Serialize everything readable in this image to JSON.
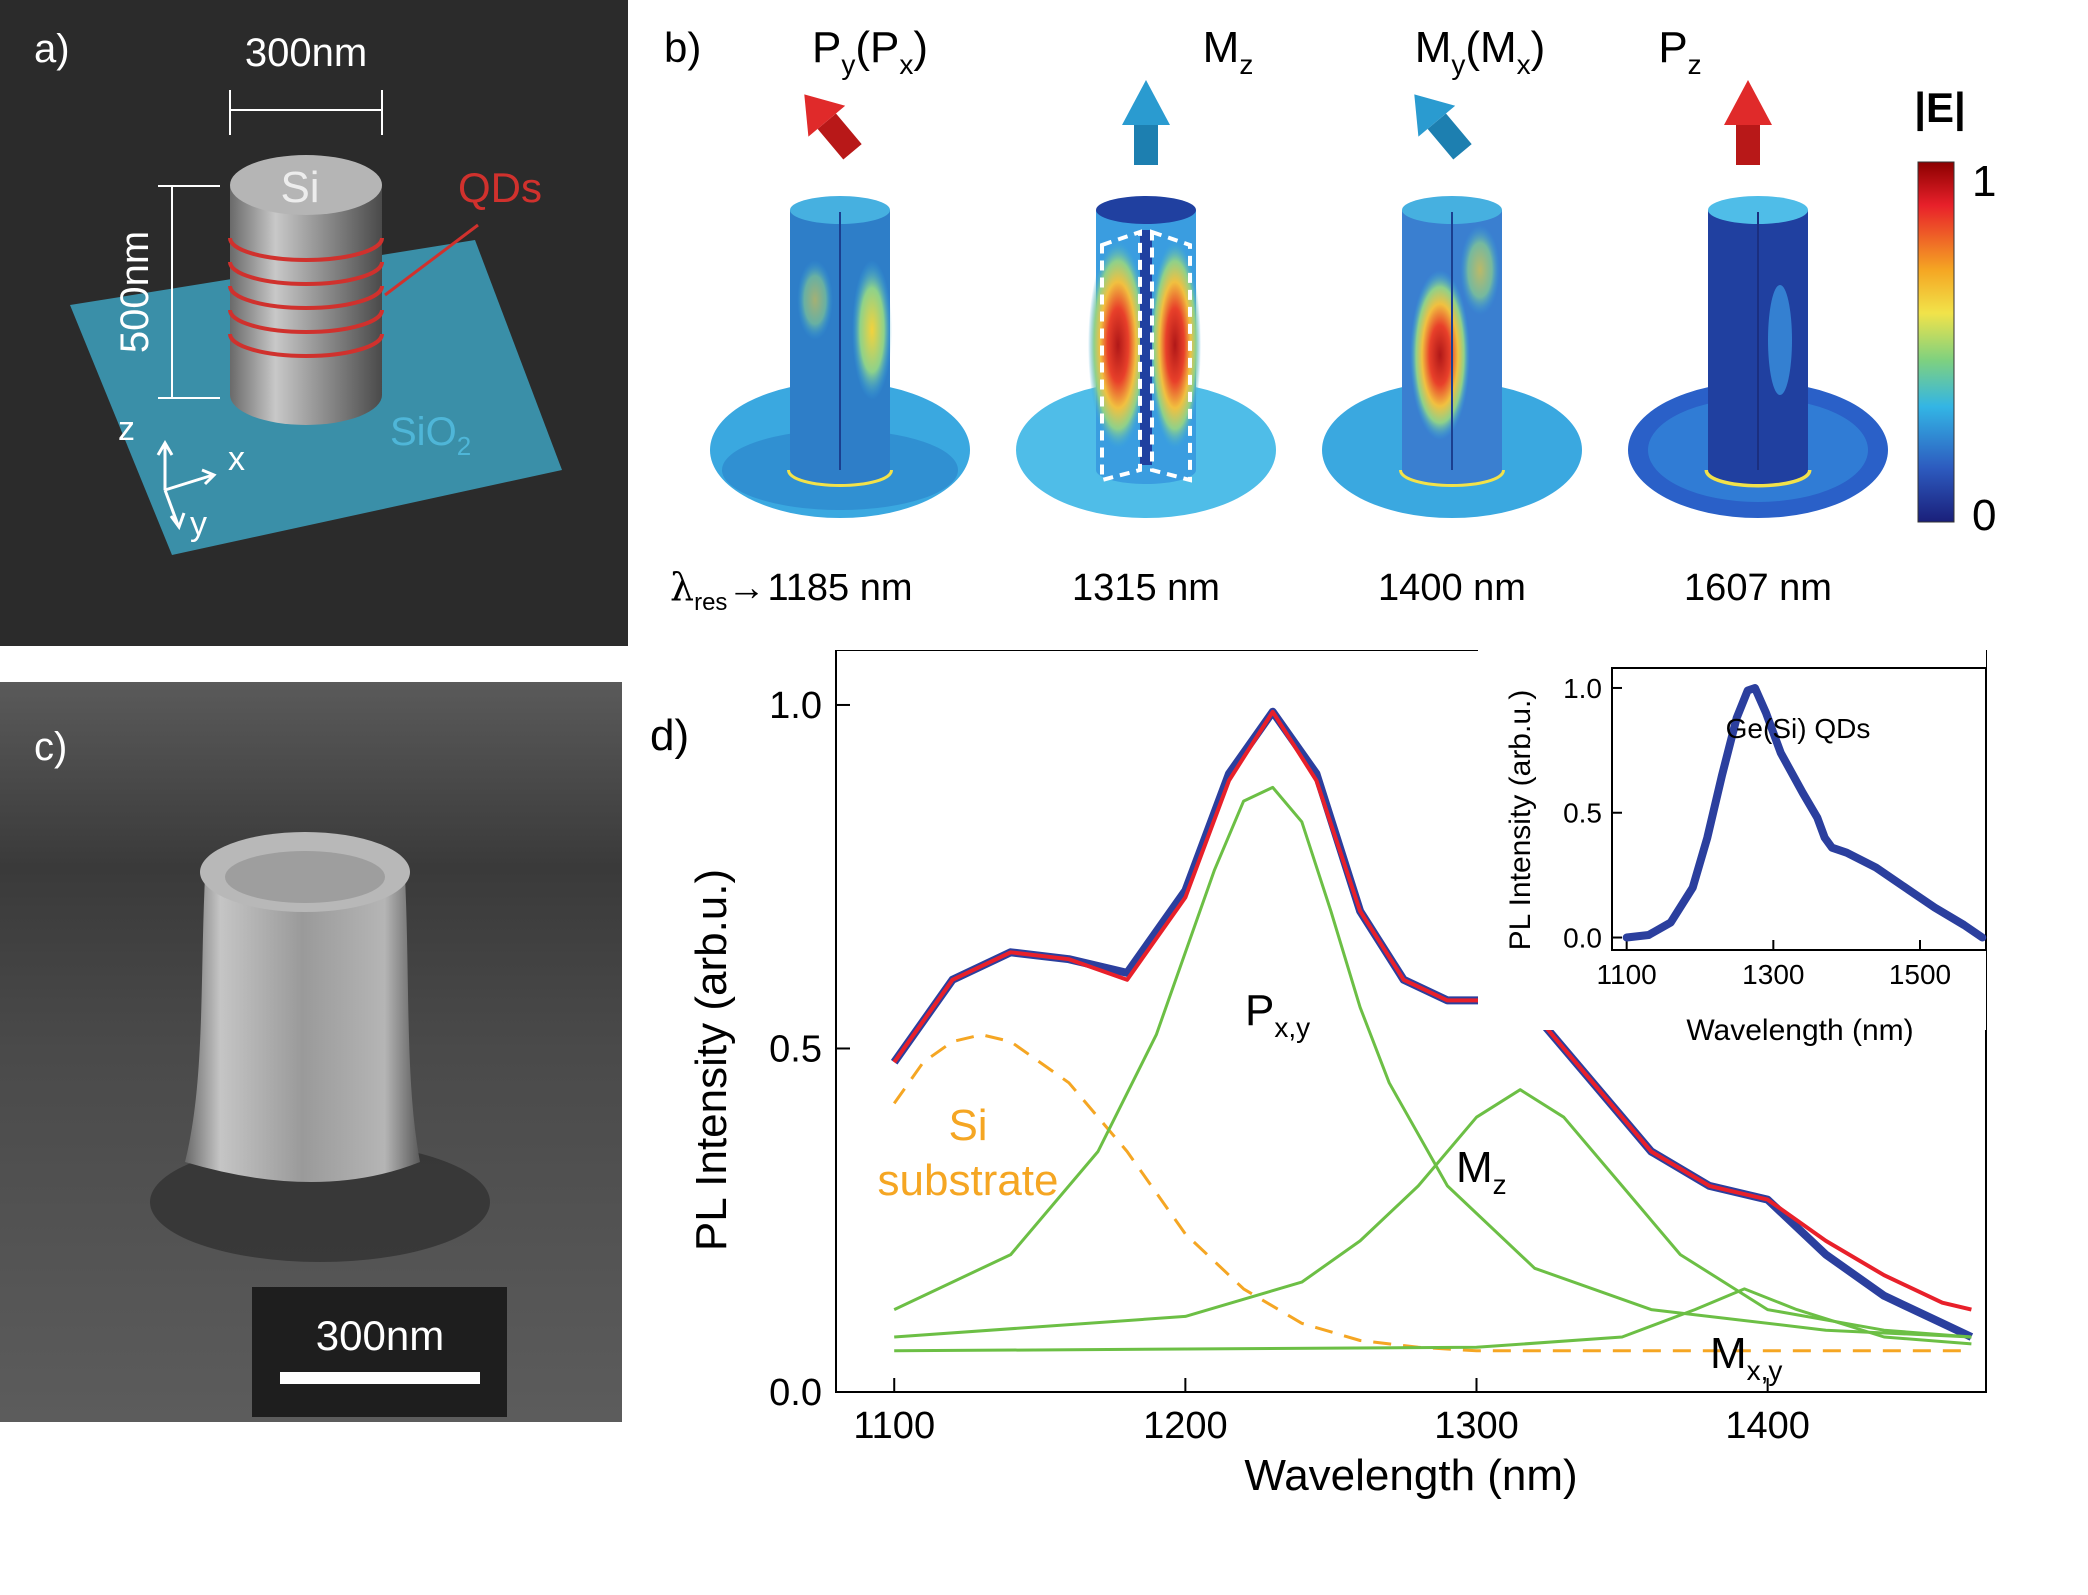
{
  "panel_a": {
    "label": "a)",
    "width_label": "300nm",
    "height_label": "500nm",
    "pillar_label": "Si",
    "qd_label": "QDs",
    "substrate_label": "SiO",
    "substrate_sub": "2",
    "axes": {
      "z": "z",
      "x": "x",
      "y": "y"
    },
    "colors": {
      "background": "#2b2b2b",
      "substrate": "#3a8fa8",
      "qd": "#d0312d",
      "sio2_text": "#4fb6d8"
    }
  },
  "panel_b": {
    "label": "b)",
    "modes": [
      {
        "main": "P",
        "sub": "y",
        "paren_main": "P",
        "paren_sub": "x",
        "arrow": "tilted-left",
        "color": "#d42020",
        "wavelength": "1185 nm"
      },
      {
        "main": "M",
        "sub": "z",
        "paren_main": "",
        "paren_sub": "",
        "arrow": "up",
        "color": "#2a9bd0",
        "wavelength": "1315 nm"
      },
      {
        "main": "M",
        "sub": "y",
        "paren_main": "M",
        "paren_sub": "x",
        "arrow": "tilted-left",
        "color": "#2a9bd0",
        "wavelength": "1400 nm"
      },
      {
        "main": "P",
        "sub": "z",
        "paren_main": "",
        "paren_sub": "",
        "arrow": "up",
        "color": "#d42020",
        "wavelength": "1607 nm"
      }
    ],
    "lambda_symbol": "λ",
    "lambda_sub": "res",
    "lambda_arrow": "→",
    "colorbar": {
      "title": "|E|",
      "max": "1",
      "min": "0"
    }
  },
  "panel_c": {
    "label": "c)",
    "scale_label": "300nm"
  },
  "panel_d": {
    "label": "d)",
    "annotations": {
      "si_line1": "Si",
      "si_line2": "substrate",
      "p_main": "P",
      "p_sub": "x,y",
      "mz_main": "M",
      "mz_sub": "z",
      "mxy_main": "M",
      "mxy_sub": "x,y"
    },
    "colors": {
      "data": "#2b3f9e",
      "fit": "#e8202a",
      "component": "#6cbf45",
      "si": "#f5a623"
    }
  },
  "chart_data": [
    {
      "type": "line",
      "xlabel": "Wavelength (nm)",
      "ylabel": "PL Intensity (arb.u.)",
      "xlim": [
        1080,
        1475
      ],
      "ylim": [
        0.0,
        1.08
      ],
      "xticks": [
        1100,
        1200,
        1300,
        1400
      ],
      "yticks": [
        0.0,
        0.5,
        1.0
      ],
      "xtick_labels": [
        "1100",
        "1200",
        "1300",
        "1400"
      ],
      "ytick_labels": [
        "0.0",
        "0.5",
        "1.0"
      ],
      "series": [
        {
          "name": "",
          "role": "measured",
          "x": [
            1100,
            1120,
            1140,
            1160,
            1180,
            1200,
            1215,
            1230,
            1245,
            1260,
            1275,
            1290,
            1300,
            1310,
            1320,
            1340,
            1360,
            1380,
            1400,
            1420,
            1440,
            1460,
            1470
          ],
          "values": [
            0.48,
            0.6,
            0.64,
            0.63,
            0.61,
            0.73,
            0.9,
            0.99,
            0.9,
            0.7,
            0.6,
            0.57,
            0.57,
            0.57,
            0.55,
            0.45,
            0.35,
            0.3,
            0.28,
            0.2,
            0.14,
            0.1,
            0.08
          ]
        },
        {
          "name": "",
          "role": "fit",
          "x": [
            1100,
            1120,
            1140,
            1160,
            1180,
            1200,
            1215,
            1230,
            1245,
            1260,
            1275,
            1290,
            1300,
            1310,
            1320,
            1340,
            1360,
            1380,
            1400,
            1420,
            1440,
            1460,
            1470
          ],
          "values": [
            0.48,
            0.6,
            0.64,
            0.63,
            0.6,
            0.72,
            0.89,
            0.99,
            0.89,
            0.7,
            0.6,
            0.57,
            0.57,
            0.57,
            0.55,
            0.45,
            0.35,
            0.3,
            0.28,
            0.22,
            0.17,
            0.13,
            0.12
          ]
        },
        {
          "name": "Si substrate",
          "role": "component-dashed",
          "x": [
            1100,
            1110,
            1120,
            1130,
            1140,
            1160,
            1180,
            1200,
            1220,
            1240,
            1260,
            1280,
            1300,
            1350,
            1400,
            1470
          ],
          "values": [
            0.42,
            0.48,
            0.51,
            0.52,
            0.51,
            0.45,
            0.35,
            0.23,
            0.15,
            0.1,
            0.075,
            0.065,
            0.06,
            0.06,
            0.06,
            0.06
          ]
        },
        {
          "name": "P x,y",
          "role": "component",
          "x": [
            1100,
            1140,
            1170,
            1190,
            1200,
            1210,
            1220,
            1230,
            1240,
            1250,
            1260,
            1270,
            1290,
            1320,
            1360,
            1420,
            1470
          ],
          "values": [
            0.12,
            0.2,
            0.35,
            0.52,
            0.64,
            0.76,
            0.86,
            0.88,
            0.83,
            0.7,
            0.56,
            0.45,
            0.3,
            0.18,
            0.12,
            0.09,
            0.08
          ]
        },
        {
          "name": "M z",
          "role": "component",
          "x": [
            1100,
            1200,
            1240,
            1260,
            1280,
            1300,
            1315,
            1330,
            1350,
            1370,
            1400,
            1440,
            1470
          ],
          "values": [
            0.08,
            0.11,
            0.16,
            0.22,
            0.3,
            0.4,
            0.44,
            0.4,
            0.3,
            0.2,
            0.12,
            0.09,
            0.08
          ]
        },
        {
          "name": "M x,y",
          "role": "component",
          "x": [
            1100,
            1300,
            1350,
            1375,
            1392,
            1410,
            1440,
            1470
          ],
          "values": [
            0.06,
            0.065,
            0.08,
            0.12,
            0.15,
            0.12,
            0.08,
            0.07
          ]
        }
      ]
    },
    {
      "type": "line",
      "title": "Ge(Si) QDs",
      "xlabel": "Wavelength (nm)",
      "ylabel": "PL Intensity (arb.u.)",
      "xlim": [
        1080,
        1590
      ],
      "ylim": [
        -0.05,
        1.08
      ],
      "xticks": [
        1100,
        1300,
        1500
      ],
      "yticks": [
        0.0,
        0.5,
        1.0
      ],
      "xtick_labels": [
        "1100",
        "1300",
        "1500"
      ],
      "ytick_labels": [
        "0.0",
        "0.5",
        "1.0"
      ],
      "series": [
        {
          "name": "",
          "x": [
            1100,
            1130,
            1160,
            1190,
            1210,
            1230,
            1250,
            1265,
            1275,
            1290,
            1310,
            1340,
            1360,
            1370,
            1380,
            1400,
            1440,
            1480,
            1520,
            1560,
            1585
          ],
          "values": [
            0.0,
            0.01,
            0.06,
            0.2,
            0.4,
            0.65,
            0.88,
            0.99,
            1.0,
            0.9,
            0.74,
            0.58,
            0.48,
            0.4,
            0.36,
            0.34,
            0.28,
            0.2,
            0.12,
            0.05,
            0.0
          ]
        }
      ]
    }
  ]
}
